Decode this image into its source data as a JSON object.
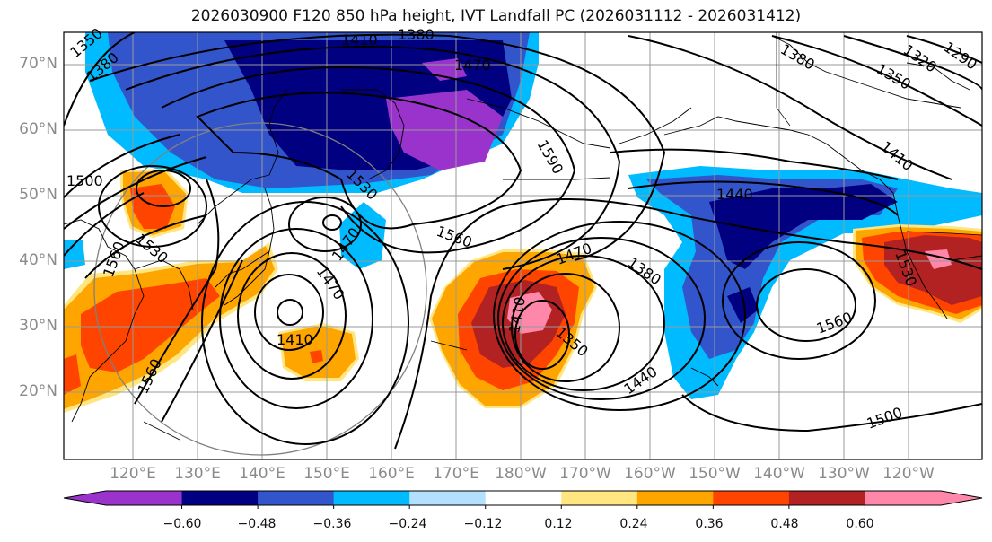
{
  "title": "2026030900 F120 850 hPa height, IVT Landfall PC (2026031112 - 2026031412)",
  "lat_labels": [
    "70°N",
    "60°N",
    "50°N",
    "40°N",
    "30°N",
    "20°N"
  ],
  "lon_labels": [
    "120°E",
    "130°E",
    "140°E",
    "150°E",
    "160°E",
    "170°E",
    "180°W",
    "170°W",
    "160°W",
    "150°W",
    "140°W",
    "130°W",
    "120°W"
  ],
  "contour_labels": [
    "1350",
    "1380",
    "1410",
    "1380",
    "1470",
    "1380",
    "1320",
    "1290",
    "1350",
    "1590",
    "1410",
    "1500",
    "1440",
    "1530",
    "1560",
    "1560",
    "1530",
    "1470",
    "1470",
    "1470",
    "1380",
    "1410",
    "1350",
    "1440",
    "1410",
    "1530",
    "1560",
    "1500",
    "1560"
  ],
  "colorbar": {
    "colors": [
      "#9933cc",
      "#000080",
      "#3355cc",
      "#00bbff",
      "#b3e0ff",
      "#ffffff",
      "#ffe680",
      "#ffa500",
      "#ff4400",
      "#b22222",
      "#ff88aa"
    ],
    "tick_labels": [
      "−0.60",
      "−0.48",
      "−0.36",
      "−0.24",
      "−0.12",
      "0.12",
      "0.24",
      "0.36",
      "0.48",
      "0.60"
    ]
  },
  "colors": {
    "frame": "#000000",
    "grid": "#999999",
    "contour": "#000000",
    "axis_text": "#8a8a8a"
  }
}
